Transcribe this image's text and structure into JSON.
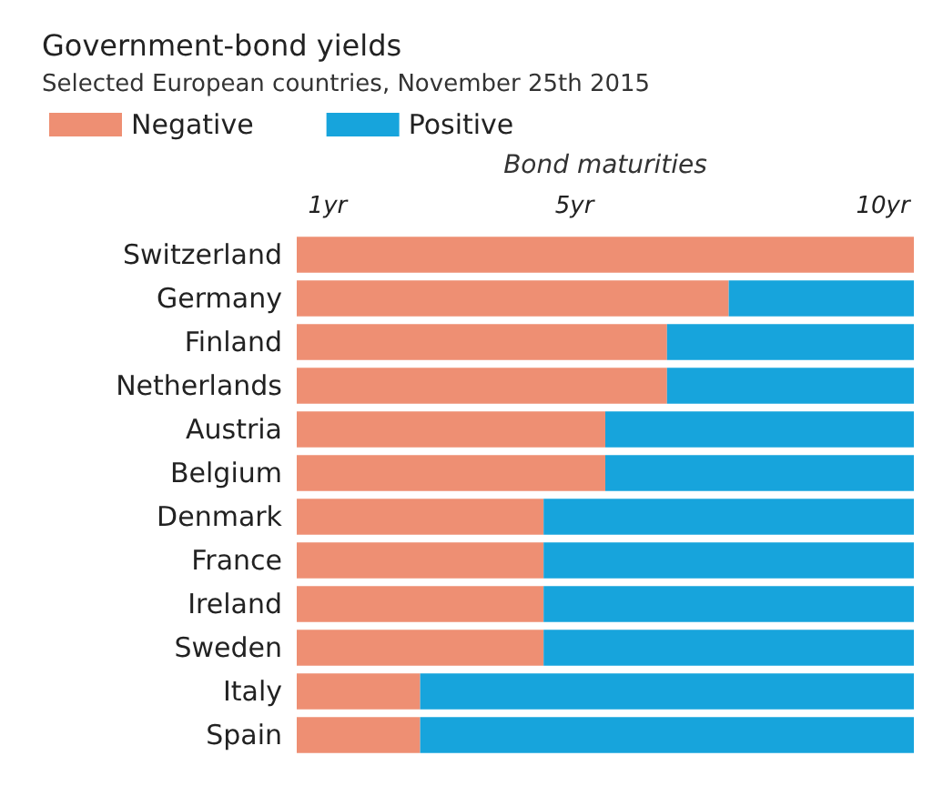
{
  "chart_data": {
    "type": "bar",
    "title": "Government-bond yields",
    "subtitle": "Selected European countries, November 25th 2015",
    "xlabel": "Bond maturities",
    "orientation": "horizontal",
    "stacked": true,
    "categories": [
      "Switzerland",
      "Germany",
      "Finland",
      "Netherlands",
      "Austria",
      "Belgium",
      "Denmark",
      "France",
      "Ireland",
      "Sweden",
      "Italy",
      "Spain"
    ],
    "series": [
      {
        "name": "Negative",
        "color": "#ee8f73",
        "values": [
          10,
          7,
          6,
          6,
          5,
          5,
          4,
          4,
          4,
          4,
          2,
          2
        ]
      },
      {
        "name": "Positive",
        "color": "#17a4dc",
        "values": [
          0,
          3,
          4,
          4,
          5,
          5,
          6,
          6,
          6,
          6,
          8,
          8
        ]
      }
    ],
    "xlim": [
      0,
      10
    ],
    "xticks": [
      {
        "value": 0.5,
        "label": "1yr"
      },
      {
        "value": 4.5,
        "label": "5yr"
      },
      {
        "value": 9.5,
        "label": "10yr"
      }
    ],
    "grid": false,
    "legend": "top left"
  }
}
